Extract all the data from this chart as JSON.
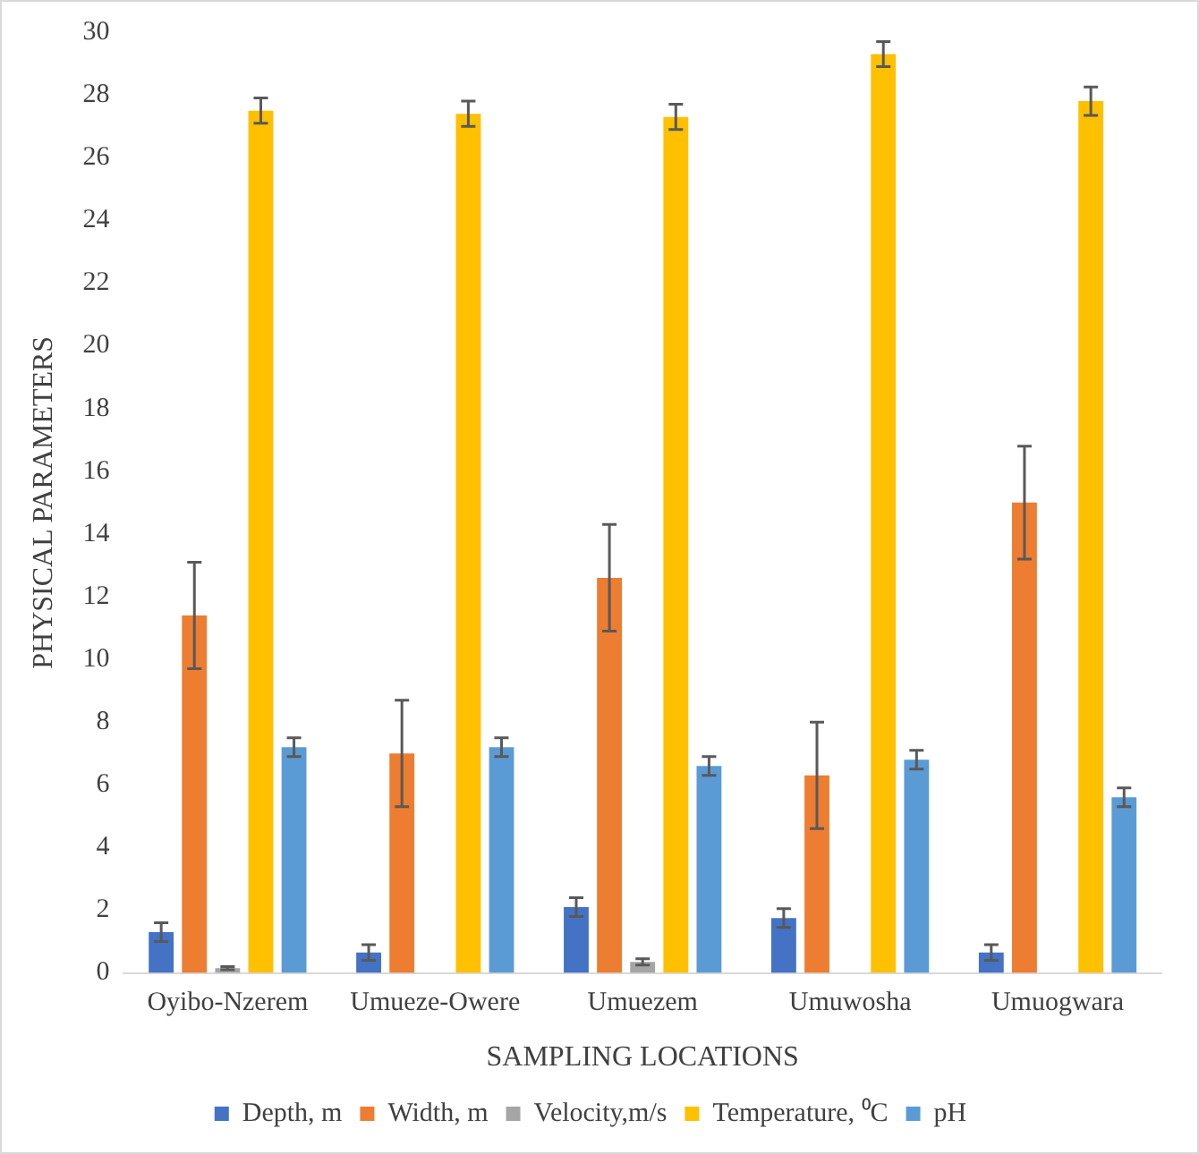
{
  "chart_data": {
    "type": "bar",
    "xlabel": "SAMPLING LOCATIONS",
    "ylabel": "PHYSICAL PARAMETERS",
    "categories": [
      "Oyibo-Nzerem",
      "Umueze-Owere",
      "Umuezem",
      "Umuwosha",
      "Umuogwara"
    ],
    "series": [
      {
        "name": "Depth, m",
        "color": "#4472c4",
        "values": [
          1.3,
          0.65,
          2.1,
          1.75,
          0.65
        ],
        "errors": [
          0.3,
          0.25,
          0.3,
          0.3,
          0.25
        ]
      },
      {
        "name": "Width, m",
        "color": "#ed7d31",
        "values": [
          11.4,
          7.0,
          12.6,
          6.3,
          15.0
        ],
        "errors": [
          1.7,
          1.7,
          1.7,
          1.7,
          1.8
        ]
      },
      {
        "name": "Velocity,m/s",
        "color": "#a5a5a5",
        "values": [
          0.15,
          null,
          0.35,
          null,
          null
        ],
        "errors": [
          0.05,
          null,
          0.1,
          null,
          null
        ]
      },
      {
        "name": "Temperature, ⁰C",
        "color": "#ffc000",
        "values": [
          27.5,
          27.4,
          27.3,
          29.3,
          27.8
        ],
        "errors": [
          0.4,
          0.4,
          0.4,
          0.4,
          0.45
        ]
      },
      {
        "name": "pH",
        "color": "#5b9bd5",
        "values": [
          7.2,
          7.2,
          6.6,
          6.8,
          5.6
        ],
        "errors": [
          0.3,
          0.3,
          0.3,
          0.3,
          0.3
        ]
      }
    ],
    "ylim": [
      0,
      30
    ],
    "yticks": [
      0,
      2,
      4,
      6,
      8,
      10,
      12,
      14,
      16,
      18,
      20,
      22,
      24,
      26,
      28,
      30
    ],
    "grid": false,
    "legend": "bottom"
  }
}
